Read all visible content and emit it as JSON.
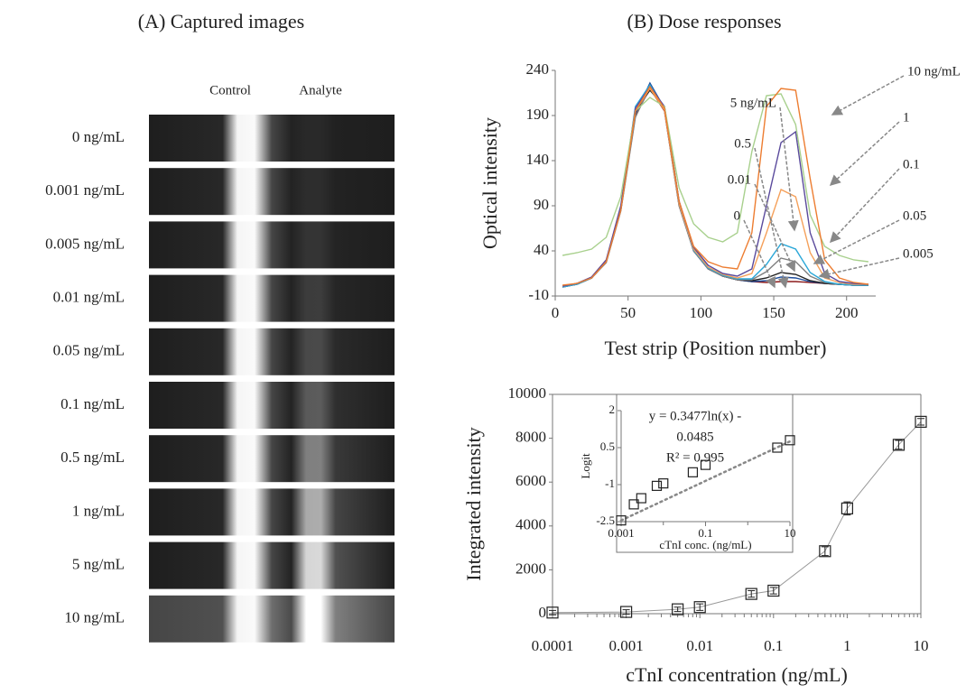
{
  "panel_a": {
    "title": "(A) Captured images",
    "columns": [
      "Control",
      "Analyte"
    ],
    "rows": [
      "0 ng/mL",
      "0.001 ng/mL",
      "0.005 ng/mL",
      "0.01 ng/mL",
      "0.05 ng/mL",
      "0.1 ng/mL",
      "0.5 ng/mL",
      "1 ng/mL",
      "5 ng/mL",
      "10 ng/mL"
    ]
  },
  "panel_b_title": "(B) Dose responses",
  "chart_data": [
    {
      "type": "line",
      "xlabel": "Test strip (Position number)",
      "ylabel": "Optical intensity",
      "x": [
        5,
        15,
        25,
        35,
        45,
        55,
        65,
        75,
        85,
        95,
        105,
        115,
        125,
        135,
        145,
        155,
        165,
        175,
        185,
        195,
        205,
        215
      ],
      "xlim": [
        0,
        220
      ],
      "xticks": [
        0,
        50,
        100,
        150,
        200
      ],
      "ylim": [
        -10,
        240
      ],
      "yticks": [
        -10,
        40,
        90,
        140,
        190,
        240
      ],
      "series": [
        {
          "name": "0",
          "color": "#8b1a1a",
          "values": [
            0,
            3,
            10,
            28,
            85,
            190,
            220,
            195,
            90,
            40,
            20,
            12,
            8,
            6,
            5,
            6,
            6,
            5,
            4,
            3,
            2,
            2
          ]
        },
        {
          "name": "0.005",
          "color": "#1f4e9c",
          "values": [
            0,
            3,
            10,
            28,
            85,
            192,
            226,
            198,
            92,
            40,
            20,
            12,
            8,
            6,
            7,
            11,
            10,
            6,
            4,
            3,
            2,
            2
          ]
        },
        {
          "name": "0.01",
          "color": "#222222",
          "values": [
            1,
            3,
            10,
            28,
            86,
            195,
            218,
            200,
            95,
            42,
            21,
            12,
            8,
            7,
            10,
            16,
            14,
            7,
            4,
            3,
            2,
            2
          ]
        },
        {
          "name": "0.05",
          "color": "#808080",
          "values": [
            0,
            3,
            10,
            27,
            84,
            188,
            222,
            196,
            90,
            40,
            20,
            12,
            8,
            8,
            17,
            32,
            28,
            12,
            5,
            3,
            2,
            2
          ]
        },
        {
          "name": "0.1",
          "color": "#2aa7d8",
          "values": [
            0,
            3,
            10,
            29,
            88,
            200,
            224,
            197,
            92,
            41,
            21,
            13,
            9,
            9,
            25,
            48,
            42,
            16,
            6,
            3,
            2,
            2
          ]
        },
        {
          "name": "0.5",
          "color": "#f5a05a",
          "values": [
            1,
            4,
            11,
            30,
            88,
            195,
            220,
            196,
            92,
            42,
            22,
            14,
            10,
            15,
            60,
            108,
            100,
            38,
            10,
            5,
            3,
            3
          ]
        },
        {
          "name": "1",
          "color": "#5a4a9c",
          "values": [
            1,
            4,
            11,
            30,
            90,
            198,
            222,
            200,
            95,
            44,
            24,
            15,
            12,
            20,
            90,
            160,
            172,
            60,
            15,
            6,
            4,
            3
          ]
        },
        {
          "name": "5 ng/mL",
          "color": "#a8d08d",
          "values": [
            35,
            38,
            42,
            55,
            100,
            195,
            210,
            200,
            110,
            70,
            55,
            50,
            60,
            150,
            212,
            214,
            180,
            80,
            45,
            35,
            30,
            28
          ]
        },
        {
          "name": "10 ng/mL",
          "color": "#ed7d31",
          "values": [
            2,
            4,
            10,
            28,
            85,
            195,
            222,
            198,
            95,
            45,
            28,
            22,
            20,
            60,
            200,
            220,
            218,
            120,
            30,
            10,
            5,
            3
          ]
        }
      ]
    },
    {
      "type": "scatter",
      "xlabel": "cTnI concentration (ng/mL)",
      "ylabel": "Integrated intensity",
      "log_x": true,
      "x": [
        0.0001,
        0.001,
        0.005,
        0.01,
        0.05,
        0.1,
        0.5,
        1,
        5,
        10
      ],
      "values": [
        50,
        80,
        200,
        300,
        900,
        1050,
        2850,
        4800,
        7700,
        8750
      ],
      "errors": [
        100,
        100,
        100,
        150,
        150,
        150,
        200,
        300,
        200,
        150
      ],
      "xlim": [
        0.0001,
        10
      ],
      "xticks": [
        0.0001,
        0.001,
        0.01,
        0.1,
        1,
        10
      ],
      "ylim": [
        0,
        10000
      ],
      "yticks": [
        0,
        2000,
        4000,
        6000,
        8000,
        10000
      ],
      "color": "#222222",
      "line_color": "#999999"
    },
    {
      "type": "scatter",
      "xlabel": "cTnI conc. (ng/mL)",
      "ylabel": "Logit",
      "log_x": true,
      "x": [
        0.001,
        0.002,
        0.003,
        0.007,
        0.01,
        0.05,
        0.1,
        5,
        10
      ],
      "values": [
        -2.45,
        -1.8,
        -1.55,
        -1.05,
        -0.95,
        -0.5,
        -0.2,
        0.5,
        0.8
      ],
      "xlim": [
        0.001,
        10
      ],
      "xticks": [
        0.001,
        0.1,
        10
      ],
      "xminor_ticks": [
        0.01,
        1
      ],
      "ylim": [
        -2.5,
        2
      ],
      "yticks": [
        -2.5,
        -1,
        0.5,
        2
      ],
      "color": "#222222",
      "fit": {
        "slope": 0.3477,
        "intercept": -0.0485,
        "color": "#888888"
      },
      "equation": [
        "y = 0.3477ln(x) -",
        "0.0485",
        "R² = 0.995"
      ]
    }
  ]
}
